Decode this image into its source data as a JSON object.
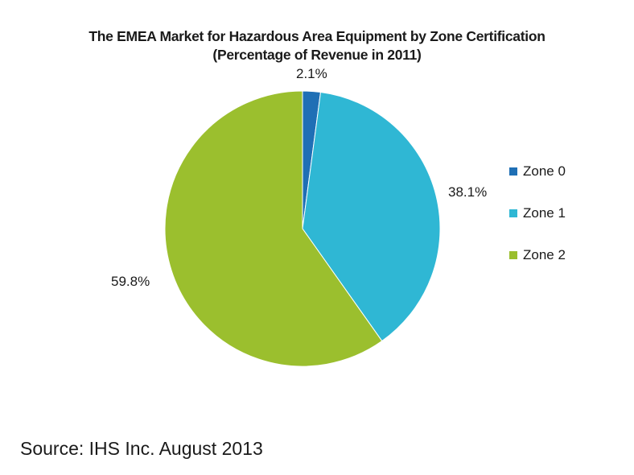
{
  "chart_data": {
    "type": "pie",
    "title_lines": [
      "The EMEA Market for Hazardous Area Equipment by Zone Certification",
      "(Percentage of Revenue in 2011)"
    ],
    "categories": [
      "Zone 0",
      "Zone 1",
      "Zone 2"
    ],
    "values": [
      2.1,
      38.1,
      59.8
    ],
    "labels": [
      "2.1%",
      "38.1%",
      "59.8%"
    ],
    "colors": [
      "#1f6fb5",
      "#2fb7d4",
      "#9bbf2e"
    ],
    "legend_position": "right"
  },
  "source": "Source: IHS Inc. August 2013"
}
